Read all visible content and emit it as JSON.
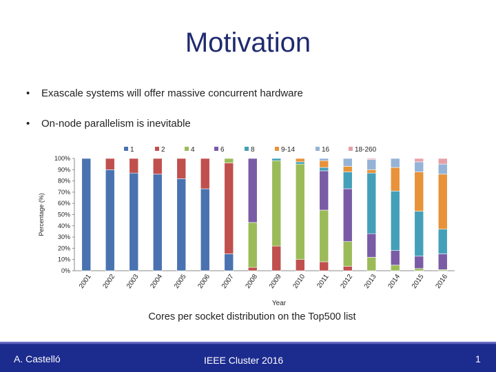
{
  "slide": {
    "title": "Motivation",
    "bullets": [
      "Exascale systems will offer massive concurrent hardware",
      "On-node parallelism is inevitable"
    ],
    "bullet_marker": "•",
    "caption": "Cores per socket distribution on the Top500 list"
  },
  "footer": {
    "author": "A. Castelló",
    "conference": "IEEE Cluster 2016",
    "page": "1"
  },
  "colors": {
    "title": "#1f2a6e",
    "footer_bg": "#1c2b8e"
  },
  "chart_data": {
    "type": "bar",
    "stacked": true,
    "xlabel": "Year",
    "ylabel": "Percentage (%)",
    "ylim": [
      0,
      100
    ],
    "yticks": [
      "0%",
      "10%",
      "20%",
      "30%",
      "40%",
      "50%",
      "60%",
      "70%",
      "80%",
      "90%",
      "100%"
    ],
    "legend_position": "top",
    "categories": [
      "2001",
      "2002",
      "2003",
      "2004",
      "2005",
      "2006",
      "2007",
      "2008",
      "2009",
      "2010",
      "2011",
      "2012",
      "2013",
      "2014",
      "2015",
      "2016"
    ],
    "series": [
      {
        "name": "1",
        "color": "#4a72b0",
        "values": [
          100,
          90,
          87,
          86,
          82,
          73,
          15,
          0,
          0,
          0,
          0,
          0,
          0,
          0,
          0,
          0
        ]
      },
      {
        "name": "2",
        "color": "#c0504d",
        "values": [
          0,
          10,
          13,
          14,
          18,
          27,
          81,
          3,
          22,
          10,
          8,
          4,
          0,
          0,
          0,
          0
        ]
      },
      {
        "name": "4",
        "color": "#9bbb59",
        "values": [
          0,
          0,
          0,
          0,
          0,
          0,
          4,
          40,
          76,
          85,
          46,
          22,
          12,
          5,
          2,
          1
        ]
      },
      {
        "name": "6",
        "color": "#7a5ba6",
        "values": [
          0,
          0,
          0,
          0,
          0,
          0,
          0,
          57,
          0,
          0,
          35,
          47,
          21,
          13,
          11,
          14
        ]
      },
      {
        "name": "8",
        "color": "#44a0b8",
        "values": [
          0,
          0,
          0,
          0,
          0,
          0,
          0,
          0,
          2,
          2,
          3,
          15,
          54,
          53,
          40,
          22
        ]
      },
      {
        "name": "9-14",
        "color": "#e8923a",
        "values": [
          0,
          0,
          0,
          0,
          0,
          0,
          0,
          0,
          0,
          3,
          6,
          5,
          3,
          21,
          35,
          49
        ]
      },
      {
        "name": "16",
        "color": "#95b3d7",
        "values": [
          0,
          0,
          0,
          0,
          0,
          0,
          0,
          0,
          0,
          0,
          2,
          7,
          9,
          8,
          9,
          9
        ]
      },
      {
        "name": "18-260",
        "color": "#e6a0a8",
        "values": [
          0,
          0,
          0,
          0,
          0,
          0,
          0,
          0,
          0,
          0,
          0,
          0,
          1,
          0,
          3,
          5
        ]
      }
    ]
  }
}
